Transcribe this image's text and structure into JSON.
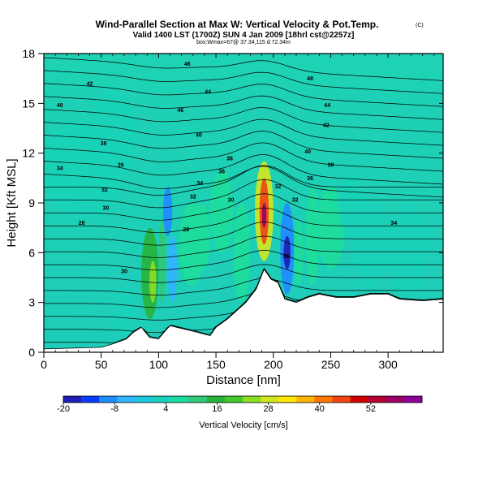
{
  "chart_data": {
    "type": "heatmap",
    "title": "Wind-Parallel Section at Max W: Vertical Velocity & Pot.Temp.",
    "title_mark": "(C)",
    "subtitle": "Valid 1400 LST (1700Z) SUN 4 Jan 2009 [18hrl cst@2257z]",
    "info_line": "box:Wmax=67@ 37.34,115 d:72.34m",
    "xlabel": "Distance [nm]",
    "ylabel": "Height [Kft MSL]",
    "xlim": [
      0,
      348
    ],
    "ylim": [
      0,
      18
    ],
    "x_ticks": [
      0,
      50,
      100,
      150,
      200,
      250,
      300
    ],
    "y_ticks": [
      0,
      3,
      6,
      9,
      12,
      15,
      18
    ],
    "colorbar": {
      "label": "Vertical Velocity [cm/s]",
      "tick_labels": [
        "-20",
        "-8",
        "4",
        "16",
        "28",
        "40",
        "52"
      ],
      "tick_values": [
        -20,
        -8,
        4,
        16,
        28,
        40,
        52
      ],
      "range": [
        -20,
        64
      ],
      "colors": [
        "#1e1eb4",
        "#0a3cff",
        "#1e8cff",
        "#32b4ff",
        "#1ec8dc",
        "#19d2b9",
        "#1edc9b",
        "#32c878",
        "#28b43c",
        "#46c828",
        "#8cdc28",
        "#d2e61e",
        "#ffe600",
        "#ffb400",
        "#ff7800",
        "#f04614",
        "#d20000",
        "#b40032",
        "#9c0064",
        "#8c0096"
      ]
    },
    "cells": [
      {
        "x": [
          85,
          100
        ],
        "y": [
          2,
          7.5
        ],
        "w": 15
      },
      {
        "x": [
          92,
          98
        ],
        "y": [
          3,
          5.5
        ],
        "w": 24
      },
      {
        "x": [
          100,
          106
        ],
        "y": [
          3,
          8
        ],
        "w": 10
      },
      {
        "x": [
          104,
          112
        ],
        "y": [
          7,
          10
        ],
        "w": -8
      },
      {
        "x": [
          108,
          116
        ],
        "y": [
          3,
          7
        ],
        "w": -5
      },
      {
        "x": [
          118,
          140
        ],
        "y": [
          4,
          9
        ],
        "w": 6
      },
      {
        "x": [
          130,
          145
        ],
        "y": [
          5,
          9
        ],
        "w": 8
      },
      {
        "x": [
          145,
          165
        ],
        "y": [
          6,
          11
        ],
        "w": 6
      },
      {
        "x": [
          165,
          180
        ],
        "y": [
          3,
          9
        ],
        "w": 7
      },
      {
        "x": [
          184,
          200
        ],
        "y": [
          5.5,
          11.5
        ],
        "w": 30
      },
      {
        "x": [
          188,
          196
        ],
        "y": [
          6.5,
          10.5
        ],
        "w": 45
      },
      {
        "x": [
          190,
          194
        ],
        "y": [
          7.5,
          9
        ],
        "w": 57
      },
      {
        "x": [
          206,
          218
        ],
        "y": [
          3.5,
          9
        ],
        "w": -10
      },
      {
        "x": [
          209,
          215
        ],
        "y": [
          5,
          7
        ],
        "w": -18
      },
      {
        "x": [
          218,
          226
        ],
        "y": [
          4,
          8
        ],
        "w": 6
      },
      {
        "x": [
          228,
          240
        ],
        "y": [
          4,
          10
        ],
        "w": 8
      },
      {
        "x": [
          238,
          262
        ],
        "y": [
          5,
          10
        ],
        "w": 6
      },
      {
        "x": [
          256,
          280
        ],
        "y": [
          7,
          11
        ],
        "w": 3
      },
      {
        "x": [
          270,
          300
        ],
        "y": [
          4,
          9
        ],
        "w": 5
      },
      {
        "x": [
          300,
          335
        ],
        "y": [
          3.5,
          9
        ],
        "w": 3
      },
      {
        "x": [
          0,
          70
        ],
        "y": [
          8,
          14
        ],
        "w": 2
      },
      {
        "x": [
          60,
          80
        ],
        "y": [
          1,
          4
        ],
        "w": 3
      },
      {
        "x": [
          40,
          80
        ],
        "y": [
          10,
          16
        ],
        "w": 3
      }
    ],
    "isotherm_labels": [
      {
        "v": "46",
        "x": 125,
        "y": 17.4
      },
      {
        "v": "48",
        "x": 232,
        "y": 16.5
      },
      {
        "v": "42",
        "x": 40,
        "y": 16.2
      },
      {
        "v": "44",
        "x": 143,
        "y": 15.7
      },
      {
        "v": "40",
        "x": 14,
        "y": 14.9
      },
      {
        "v": "46",
        "x": 119,
        "y": 14.6
      },
      {
        "v": "44",
        "x": 247,
        "y": 14.9
      },
      {
        "v": "42",
        "x": 246,
        "y": 13.7
      },
      {
        "v": "40",
        "x": 135,
        "y": 13.1
      },
      {
        "v": "38",
        "x": 52,
        "y": 12.6
      },
      {
        "v": "40",
        "x": 230,
        "y": 12.1
      },
      {
        "v": "38",
        "x": 162,
        "y": 11.7
      },
      {
        "v": "36",
        "x": 67,
        "y": 11.3
      },
      {
        "v": "38",
        "x": 250,
        "y": 11.3
      },
      {
        "v": "34",
        "x": 14,
        "y": 11.1
      },
      {
        "v": "36",
        "x": 155,
        "y": 10.9
      },
      {
        "v": "36",
        "x": 232,
        "y": 10.5
      },
      {
        "v": "34",
        "x": 136,
        "y": 10.2
      },
      {
        "v": "32",
        "x": 204,
        "y": 10.0
      },
      {
        "v": "32",
        "x": 53,
        "y": 9.8
      },
      {
        "v": "32",
        "x": 130,
        "y": 9.4
      },
      {
        "v": "30",
        "x": 163,
        "y": 9.2
      },
      {
        "v": "32",
        "x": 219,
        "y": 9.2
      },
      {
        "v": "30",
        "x": 54,
        "y": 8.7
      },
      {
        "v": "28",
        "x": 33,
        "y": 7.8
      },
      {
        "v": "28",
        "x": 124,
        "y": 7.4
      },
      {
        "v": "34",
        "x": 305,
        "y": 7.8
      },
      {
        "v": "30",
        "x": 211,
        "y": 5.8
      },
      {
        "v": "30",
        "x": 70,
        "y": 4.9
      }
    ],
    "terrain": [
      [
        0,
        0.2
      ],
      [
        50,
        0.3
      ],
      [
        60,
        0.5
      ],
      [
        72,
        0.8
      ],
      [
        78,
        1.2
      ],
      [
        85,
        1.5
      ],
      [
        92,
        0.9
      ],
      [
        100,
        0.8
      ],
      [
        106,
        1.3
      ],
      [
        110,
        1.6
      ],
      [
        128,
        1.3
      ],
      [
        145,
        1.0
      ],
      [
        150,
        1.5
      ],
      [
        160,
        2.0
      ],
      [
        168,
        2.5
      ],
      [
        176,
        3.0
      ],
      [
        185,
        3.8
      ],
      [
        192,
        5.0
      ],
      [
        198,
        4.4
      ],
      [
        204,
        4.2
      ],
      [
        210,
        3.2
      ],
      [
        220,
        3.0
      ],
      [
        230,
        3.3
      ],
      [
        240,
        3.5
      ],
      [
        255,
        3.3
      ],
      [
        270,
        3.3
      ],
      [
        285,
        3.5
      ],
      [
        300,
        3.5
      ],
      [
        310,
        3.2
      ],
      [
        330,
        3.1
      ],
      [
        348,
        3.2
      ]
    ],
    "isotherm_levels": [
      26,
      27,
      28,
      29,
      30,
      31,
      32,
      33,
      34,
      35,
      36,
      37,
      38,
      39,
      40,
      41,
      42,
      43,
      44,
      45,
      46,
      47,
      48
    ]
  }
}
